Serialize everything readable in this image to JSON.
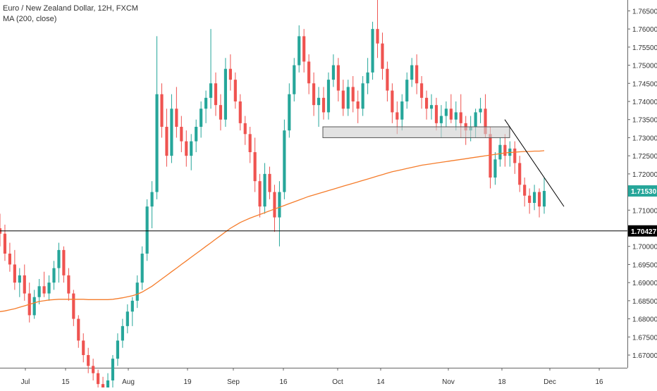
{
  "legend": {
    "symbol": "Euro / New Zealand Dollar, 12H, FXCM",
    "indicator": "MA (200, close)"
  },
  "chart_data": {
    "type": "candlestick",
    "x_ticks": [
      "Jul",
      "15",
      "Aug",
      "19",
      "Sep",
      "16",
      "Oct",
      "14",
      "Nov",
      "18",
      "Dec",
      "16"
    ],
    "y_ticks": [
      "1.76500",
      "1.76000",
      "1.75500",
      "1.75000",
      "1.74500",
      "1.74000",
      "1.73500",
      "1.73000",
      "1.72500",
      "1.72000",
      "1.71500",
      "1.71000",
      "1.70500",
      "1.70000",
      "1.69500",
      "1.69000",
      "1.68500",
      "1.68000",
      "1.67500",
      "1.67000"
    ],
    "ylim": [
      1.6665,
      1.768
    ],
    "last_price": "1.71530",
    "horizontal_line": "1.70427",
    "colors": {
      "up": "#26a69a",
      "down": "#ef5350",
      "ma": "#f57c2b",
      "line": "#000000",
      "zone": "#cfcfcf"
    },
    "candles": [
      [
        1.705,
        1.709,
        1.7,
        1.7035
      ],
      [
        1.7035,
        1.706,
        1.696,
        1.698
      ],
      [
        1.698,
        1.701,
        1.693,
        1.695
      ],
      [
        1.695,
        1.699,
        1.688,
        1.69
      ],
      [
        1.69,
        1.694,
        1.686,
        1.692
      ],
      [
        1.692,
        1.695,
        1.685,
        1.687
      ],
      [
        1.687,
        1.69,
        1.679,
        1.681
      ],
      [
        1.681,
        1.688,
        1.68,
        1.686
      ],
      [
        1.686,
        1.691,
        1.684,
        1.689
      ],
      [
        1.689,
        1.693,
        1.686,
        1.687
      ],
      [
        1.687,
        1.692,
        1.685,
        1.69
      ],
      [
        1.69,
        1.696,
        1.688,
        1.694
      ],
      [
        1.694,
        1.701,
        1.69,
        1.699
      ],
      [
        1.699,
        1.7,
        1.69,
        1.692
      ],
      [
        1.692,
        1.694,
        1.685,
        1.687
      ],
      [
        1.687,
        1.688,
        1.678,
        1.68
      ],
      [
        1.68,
        1.681,
        1.672,
        1.674
      ],
      [
        1.674,
        1.676,
        1.668,
        1.67
      ],
      [
        1.67,
        1.672,
        1.665,
        1.667
      ],
      [
        1.667,
        1.669,
        1.663,
        1.665
      ],
      [
        1.665,
        1.666,
        1.66,
        1.662
      ],
      [
        1.662,
        1.664,
        1.658,
        1.66
      ],
      [
        1.66,
        1.665,
        1.658,
        1.663
      ],
      [
        1.663,
        1.67,
        1.661,
        1.669
      ],
      [
        1.669,
        1.676,
        1.667,
        1.674
      ],
      [
        1.674,
        1.68,
        1.672,
        1.678
      ],
      [
        1.678,
        1.684,
        1.676,
        1.682
      ],
      [
        1.682,
        1.686,
        1.678,
        1.685
      ],
      [
        1.685,
        1.692,
        1.683,
        1.69
      ],
      [
        1.69,
        1.7,
        1.688,
        1.698
      ],
      [
        1.698,
        1.713,
        1.696,
        1.711
      ],
      [
        1.711,
        1.718,
        1.705,
        1.715
      ],
      [
        1.715,
        1.758,
        1.713,
        1.742
      ],
      [
        1.742,
        1.745,
        1.73,
        1.733
      ],
      [
        1.733,
        1.738,
        1.722,
        1.725
      ],
      [
        1.725,
        1.742,
        1.723,
        1.738
      ],
      [
        1.738,
        1.744,
        1.73,
        1.733
      ],
      [
        1.733,
        1.736,
        1.726,
        1.729
      ],
      [
        1.729,
        1.732,
        1.722,
        1.725
      ],
      [
        1.725,
        1.731,
        1.721,
        1.729
      ],
      [
        1.729,
        1.735,
        1.726,
        1.733
      ],
      [
        1.733,
        1.74,
        1.73,
        1.738
      ],
      [
        1.738,
        1.743,
        1.734,
        1.741
      ],
      [
        1.741,
        1.76,
        1.738,
        1.745
      ],
      [
        1.745,
        1.748,
        1.736,
        1.739
      ],
      [
        1.739,
        1.742,
        1.732,
        1.735
      ],
      [
        1.735,
        1.752,
        1.733,
        1.749
      ],
      [
        1.749,
        1.753,
        1.743,
        1.746
      ],
      [
        1.746,
        1.748,
        1.738,
        1.74
      ],
      [
        1.74,
        1.742,
        1.732,
        1.734
      ],
      [
        1.734,
        1.736,
        1.728,
        1.731
      ],
      [
        1.731,
        1.733,
        1.723,
        1.726
      ],
      [
        1.726,
        1.73,
        1.715,
        1.718
      ],
      [
        1.718,
        1.72,
        1.708,
        1.711
      ],
      [
        1.711,
        1.723,
        1.709,
        1.72
      ],
      [
        1.72,
        1.722,
        1.713,
        1.715
      ],
      [
        1.715,
        1.717,
        1.704,
        1.708
      ],
      [
        1.708,
        1.718,
        1.7,
        1.715
      ],
      [
        1.715,
        1.735,
        1.713,
        1.732
      ],
      [
        1.732,
        1.745,
        1.73,
        1.742
      ],
      [
        1.742,
        1.752,
        1.74,
        1.75
      ],
      [
        1.75,
        1.761,
        1.748,
        1.758
      ],
      [
        1.758,
        1.76,
        1.748,
        1.751
      ],
      [
        1.751,
        1.753,
        1.742,
        1.745
      ],
      [
        1.745,
        1.748,
        1.736,
        1.739
      ],
      [
        1.739,
        1.744,
        1.733,
        1.741
      ],
      [
        1.741,
        1.744,
        1.735,
        1.737
      ],
      [
        1.737,
        1.748,
        1.735,
        1.746
      ],
      [
        1.746,
        1.753,
        1.744,
        1.75
      ],
      [
        1.75,
        1.752,
        1.74,
        1.743
      ],
      [
        1.743,
        1.746,
        1.736,
        1.738
      ],
      [
        1.738,
        1.746,
        1.736,
        1.744
      ],
      [
        1.744,
        1.747,
        1.737,
        1.74
      ],
      [
        1.74,
        1.743,
        1.734,
        1.738
      ],
      [
        1.738,
        1.747,
        1.736,
        1.745
      ],
      [
        1.745,
        1.752,
        1.742,
        1.748
      ],
      [
        1.748,
        1.762,
        1.746,
        1.76
      ],
      [
        1.76,
        1.768,
        1.752,
        1.756
      ],
      [
        1.756,
        1.759,
        1.746,
        1.749
      ],
      [
        1.749,
        1.751,
        1.74,
        1.743
      ],
      [
        1.743,
        1.745,
        1.734,
        1.737
      ],
      [
        1.737,
        1.74,
        1.731,
        1.735
      ],
      [
        1.735,
        1.742,
        1.732,
        1.74
      ],
      [
        1.74,
        1.748,
        1.738,
        1.746
      ],
      [
        1.746,
        1.752,
        1.744,
        1.75
      ],
      [
        1.75,
        1.753,
        1.742,
        1.745
      ],
      [
        1.745,
        1.747,
        1.738,
        1.741
      ],
      [
        1.741,
        1.743,
        1.735,
        1.738
      ],
      [
        1.738,
        1.742,
        1.735,
        1.739
      ],
      [
        1.739,
        1.741,
        1.732,
        1.734
      ],
      [
        1.734,
        1.739,
        1.73,
        1.736
      ],
      [
        1.736,
        1.74,
        1.733,
        1.738
      ],
      [
        1.738,
        1.742,
        1.734,
        1.735
      ],
      [
        1.735,
        1.74,
        1.732,
        1.737
      ],
      [
        1.737,
        1.742,
        1.73,
        1.734
      ],
      [
        1.734,
        1.736,
        1.728,
        1.732
      ],
      [
        1.732,
        1.736,
        1.729,
        1.733
      ],
      [
        1.733,
        1.738,
        1.73,
        1.737
      ],
      [
        1.737,
        1.741,
        1.734,
        1.738
      ],
      [
        1.738,
        1.742,
        1.73,
        1.731
      ],
      [
        1.731,
        1.733,
        1.716,
        1.719
      ],
      [
        1.719,
        1.726,
        1.717,
        1.724
      ],
      [
        1.724,
        1.73,
        1.722,
        1.728
      ],
      [
        1.728,
        1.731,
        1.722,
        1.725
      ],
      [
        1.725,
        1.729,
        1.722,
        1.727
      ],
      [
        1.727,
        1.729,
        1.72,
        1.723
      ],
      [
        1.723,
        1.725,
        1.715,
        1.717
      ],
      [
        1.717,
        1.719,
        1.711,
        1.714
      ],
      [
        1.714,
        1.716,
        1.709,
        1.712
      ],
      [
        1.712,
        1.717,
        1.71,
        1.715
      ],
      [
        1.715,
        1.716,
        1.708,
        1.711
      ],
      [
        1.711,
        1.719,
        1.709,
        1.7153
      ]
    ],
    "ma_values": [
      1.682,
      1.6822,
      1.6825,
      1.6828,
      1.6832,
      1.6836,
      1.684,
      1.6844,
      1.6848,
      1.685,
      1.6852,
      1.6853,
      1.6854,
      1.6854,
      1.6854,
      1.6854,
      1.6854,
      1.6854,
      1.6853,
      1.6853,
      1.6853,
      1.6853,
      1.6853,
      1.6854,
      1.6856,
      1.6858,
      1.6861,
      1.6864,
      1.6868,
      1.6874,
      1.6882,
      1.689,
      1.69,
      1.691,
      1.692,
      1.693,
      1.694,
      1.695,
      1.696,
      1.697,
      1.698,
      1.699,
      1.7,
      1.701,
      1.702,
      1.703,
      1.704,
      1.705,
      1.7058,
      1.7066,
      1.7072,
      1.7078,
      1.7083,
      1.7088,
      1.7093,
      1.7098,
      1.7103,
      1.7108,
      1.7113,
      1.7118,
      1.7123,
      1.7128,
      1.7133,
      1.7138,
      1.7142,
      1.7146,
      1.715,
      1.7154,
      1.7158,
      1.7162,
      1.7166,
      1.717,
      1.7174,
      1.7178,
      1.7182,
      1.7186,
      1.719,
      1.7194,
      1.7198,
      1.7202,
      1.7206,
      1.7209,
      1.7212,
      1.7215,
      1.7218,
      1.7221,
      1.7224,
      1.7226,
      1.7228,
      1.723,
      1.7232,
      1.7234,
      1.7236,
      1.7238,
      1.724,
      1.7242,
      1.7244,
      1.7246,
      1.7248,
      1.725,
      1.7252,
      1.7254,
      1.7256,
      1.7258,
      1.7259,
      1.726,
      1.7261,
      1.7262,
      1.7262,
      1.7263,
      1.7263,
      1.7264
    ],
    "zone": {
      "top": 1.733,
      "bottom": 1.73
    },
    "trendline": {
      "start": 1.735,
      "end": 1.711
    }
  }
}
